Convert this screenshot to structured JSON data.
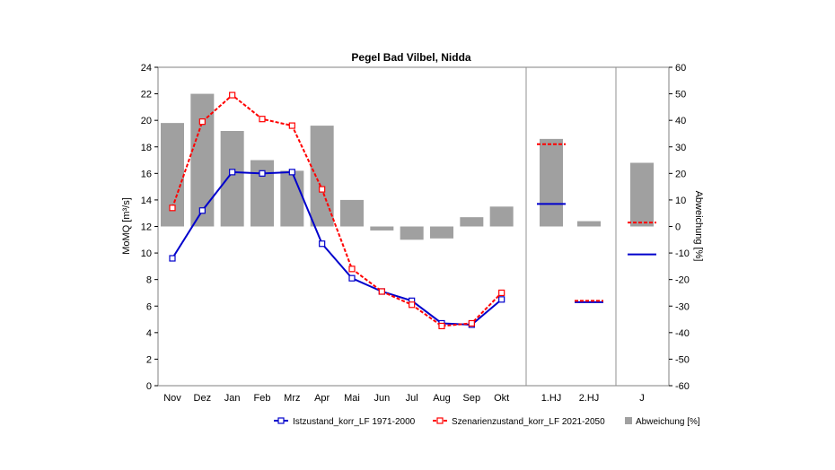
{
  "chart_data": {
    "type": "bar",
    "title": "Pegel Bad Vilbel, Nidda",
    "ylabel": "MoMQ [m³/s]",
    "y2label": "Abweichung [%]",
    "ylim": [
      0,
      24
    ],
    "y2lim": [
      -60,
      60
    ],
    "yticks": [
      0,
      2,
      4,
      6,
      8,
      10,
      12,
      14,
      16,
      18,
      20,
      22,
      24
    ],
    "y2ticks": [
      -60,
      -50,
      -40,
      -30,
      -20,
      -10,
      0,
      10,
      20,
      30,
      40,
      50,
      60
    ],
    "categories": [
      "Nov",
      "Dez",
      "Jan",
      "Feb",
      "Mrz",
      "Apr",
      "Mai",
      "Jun",
      "Jul",
      "Aug",
      "Sep",
      "Okt",
      "1.HJ",
      "2.HJ",
      "J"
    ],
    "legend_position": "bottom",
    "series": [
      {
        "name": "Istzustand_korr_LF 1971-2000",
        "kind": "line",
        "color": "#0000cc",
        "monthly": [
          9.6,
          13.2,
          16.1,
          16.0,
          16.1,
          10.7,
          8.1,
          7.1,
          6.4,
          4.7,
          4.6,
          6.5
        ],
        "periods": [
          13.7,
          6.3,
          9.9
        ]
      },
      {
        "name": "Szenarienzustand_korr_LF 2021-2050",
        "kind": "line",
        "color": "#ff0000",
        "monthly": [
          13.4,
          19.9,
          21.9,
          20.1,
          19.6,
          14.8,
          8.8,
          7.1,
          6.1,
          4.5,
          4.7,
          7.0
        ],
        "periods": [
          18.2,
          6.4,
          12.3
        ]
      },
      {
        "name": "Abweichung [%]",
        "kind": "bar",
        "color": "#a0a0a0",
        "values": [
          39,
          50,
          36,
          25,
          21,
          38,
          10,
          -1.5,
          -5,
          -4.5,
          3.5,
          7.5,
          33,
          2,
          24
        ]
      }
    ]
  }
}
